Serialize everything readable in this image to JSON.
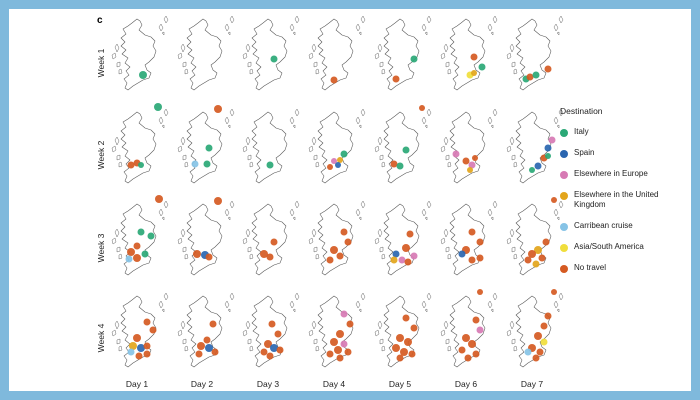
{
  "figure": {
    "panel_letter": "c",
    "legend_title": "Destination"
  },
  "rows": [
    "Week 1",
    "Week 2",
    "Week 3",
    "Week 4"
  ],
  "columns": [
    "Day 1",
    "Day 2",
    "Day 3",
    "Day 4",
    "Day 5",
    "Day 6",
    "Day 7"
  ],
  "legend": [
    {
      "key": "italy",
      "label": "Italy",
      "color": "#2aa876"
    },
    {
      "key": "spain",
      "label": "Spain",
      "color": "#2a66b0"
    },
    {
      "key": "europe",
      "label": "Elsewhere in Europe",
      "color": "#d77ab4"
    },
    {
      "key": "uk",
      "label": "Elsewhere in the United Kingdom",
      "color": "#e3a51b"
    },
    {
      "key": "caribbean",
      "label": "Carribean cruise",
      "color": "#86c3e6"
    },
    {
      "key": "asia_sa",
      "label": "Asia/South America",
      "color": "#f0de3c"
    },
    {
      "key": "none",
      "label": "No travel",
      "color": "#d55a22"
    }
  ]
}
